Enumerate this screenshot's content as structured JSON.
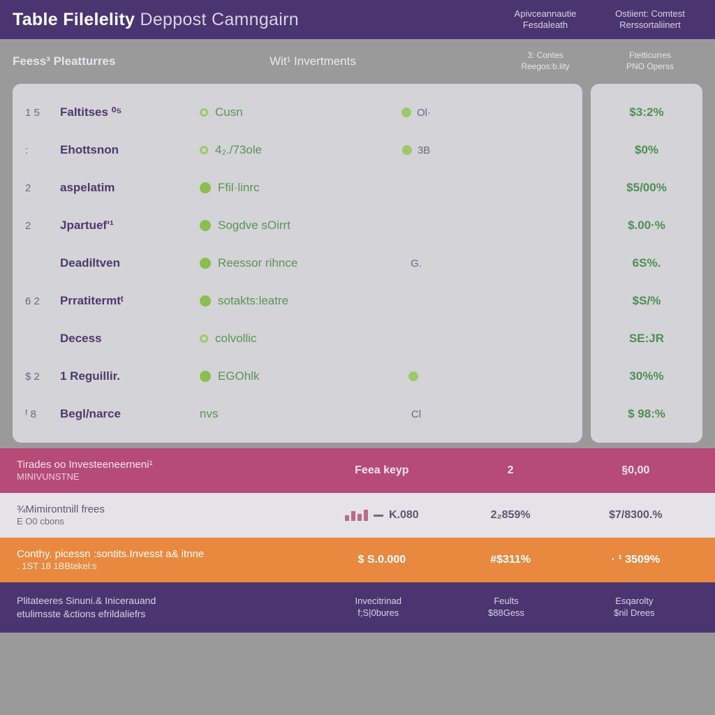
{
  "header": {
    "title_bold1": "Table",
    "title_bold2": "Filelelity",
    "title_light1": "Deppost",
    "title_light2": "Camngairn",
    "col_a_line1": "Apivceannautie",
    "col_a_line2": "Fesdaleath",
    "col_b_line1": "Ostiient: Comtest",
    "col_b_line2": "Rerssortaliinert"
  },
  "subheader": {
    "col1": "Feess³ Pleatturres",
    "col2": "Wit¹ Invertments",
    "col3_line1": "3: Contes",
    "col3_line2": "Reegos:b.lity",
    "col4_line1": "Ftetticurres",
    "col4_line2": "PNO Operss"
  },
  "rows": [
    {
      "idx": "1 5",
      "name": "Faltitses ⁰⁵",
      "dot": "#9dc96a",
      "dot_filled": false,
      "invest": "Cusn",
      "col3_dot": "#9dc96a",
      "col3_text": "Ol·",
      "right": "$3:2%"
    },
    {
      "idx": ":",
      "name": "Ehottsnon",
      "dot": "#9dc96a",
      "dot_filled": false,
      "invest": "4₂./73ole",
      "col3_dot": "#9dc96a",
      "col3_text": "3B",
      "right": "$0%"
    },
    {
      "idx": "2",
      "name": "aspelatim",
      "dot": "#8abf4f",
      "dot_filled": true,
      "invest": "Ffil·linrc",
      "col3_dot": "",
      "col3_text": "",
      "right": "$5/00%"
    },
    {
      "idx": "2",
      "name": "Jpartuef'¹",
      "dot": "#8abf4f",
      "dot_filled": true,
      "invest": "Sogdve sOirrt",
      "col3_dot": "",
      "col3_text": "",
      "right": "$.00·%"
    },
    {
      "idx": "",
      "name": "Deadiltven",
      "dot": "#8abf4f",
      "dot_filled": true,
      "invest": "Reessor rihnce",
      "col3_dot": "",
      "col3_text": "G.",
      "right": "6S%."
    },
    {
      "idx": "6 2",
      "name": "Prratitermtᵗ",
      "dot": "#8abf4f",
      "dot_filled": true,
      "invest": "sotakts:leatre",
      "col3_dot": "",
      "col3_text": "",
      "right": "$S/%"
    },
    {
      "idx": "",
      "name": "Decess",
      "dot": "#9dc96a",
      "dot_filled": false,
      "invest": "colvollic",
      "col3_dot": "",
      "col3_text": "",
      "right": "SE:JR"
    },
    {
      "idx": "$ 2",
      "name": "1 Reguillir.",
      "dot": "#8abf4f",
      "dot_filled": true,
      "invest": "EGOhlk",
      "col3_dot": "#9dc96a",
      "col3_text": "",
      "right": "30%%"
    },
    {
      "idx": "ᶠ 8",
      "name": "Begl/narce",
      "dot": "",
      "dot_filled": false,
      "invest": "nvs",
      "col3_dot": "",
      "col3_text": "Cl",
      "right": "$ 98:%"
    }
  ],
  "summary": [
    {
      "cls": "sr1",
      "label": "Tirades oo Investeeneerneni¹",
      "sub": "MINIVUNSTNE",
      "c2": "Feea keyp",
      "c3": "2",
      "c4": "§0,00"
    },
    {
      "cls": "sr2",
      "label": "¾Mimirontnill frees",
      "sub": "E O0 cbons",
      "c2": "K.080",
      "c3": "2₂859%",
      "c4": "$7/8300.%"
    },
    {
      "cls": "sr3",
      "label": "Conthy. picessn :sontits.Invesst a& itnne",
      "sub": ". 1ST 18 1BBtekel:s",
      "c2": "$ S.0.000",
      "c3": "#$311%",
      "c4": "· ¹ 3509%"
    }
  ],
  "footer": {
    "col1_line1": "Plitateeres Sinuni.& Inicerauand",
    "col1_line2": "etulimsste &ctions efrildaliefrs",
    "col2_line1": "Invecitrinad",
    "col2_line2": "f;S|0bures",
    "col3_line1": "Feults",
    "col3_line2": "$88Gess",
    "col4_line1": "Esqarolty",
    "col4_line2": "$nil Drees"
  },
  "colors": {
    "header_bg": "#4a3570",
    "page_bg": "#9a9a9a",
    "panel_bg": "#d4d3d8",
    "green_text": "#5a9456",
    "green_bold": "#4e8f52",
    "purple_text": "#4a3a6a",
    "dot_light": "#9dc96a",
    "dot_dark": "#8abf4f"
  }
}
